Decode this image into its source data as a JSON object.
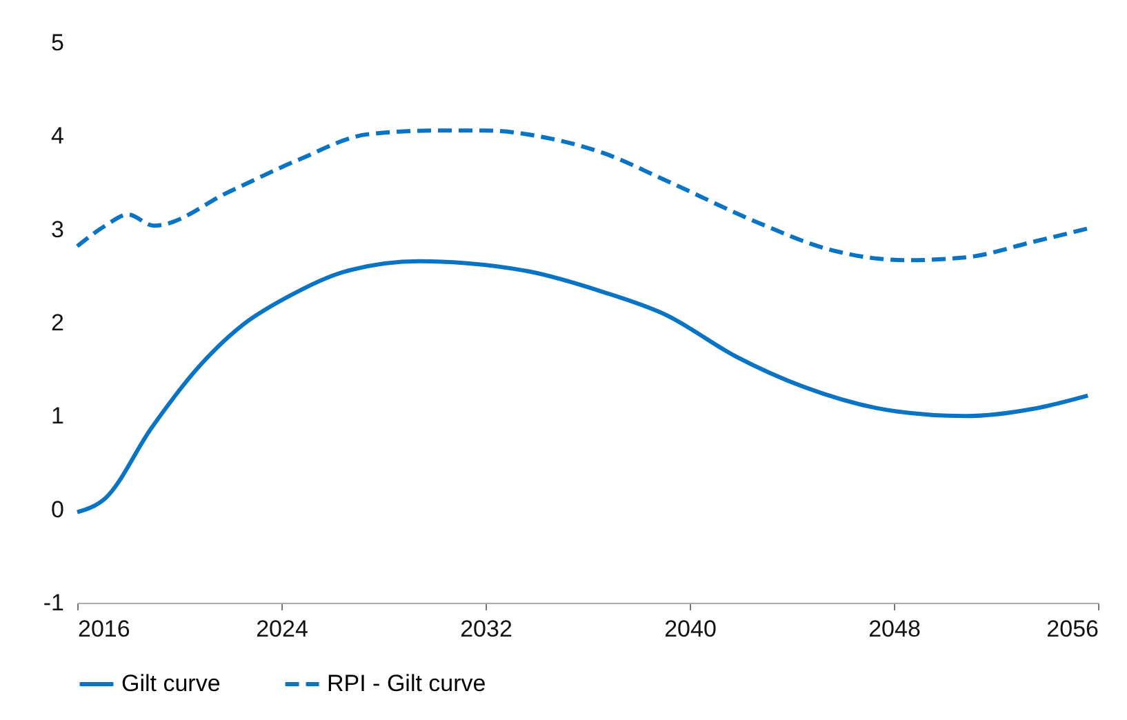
{
  "chart_data": {
    "type": "line",
    "xlim": [
      2016,
      2056
    ],
    "xticks": [
      2016,
      2024,
      2032,
      2040,
      2048,
      2056
    ],
    "ylim": [
      -1,
      5
    ],
    "yticks": [
      -1,
      0,
      1,
      2,
      3,
      4,
      5
    ],
    "grid": false,
    "legend": "bottom left",
    "series": [
      {
        "name": "Gilt curve",
        "color": "#0a74c4",
        "line_style": "solid",
        "x": [
          2016,
          2017.1,
          2018.9,
          2020.8,
          2022.5,
          2024.2,
          2026.5,
          2029.4,
          2031.2,
          2033.7,
          2036.6,
          2039.1,
          2041.8,
          2044.5,
          2048.1,
          2050.8,
          2053.5,
          2055.6
        ],
        "values": [
          -0.03,
          0.12,
          0.87,
          1.54,
          1.98,
          2.27,
          2.55,
          2.66,
          2.64,
          2.55,
          2.33,
          2.08,
          1.64,
          1.31,
          1.05,
          1.0,
          1.08,
          1.22
        ]
      },
      {
        "name": "RPI - Gilt curve",
        "color": "#0a74c4",
        "line_style": "dashed",
        "x": [
          2016,
          2017.1,
          2018.0,
          2019.0,
          2022,
          2024.7,
          2027.4,
          2030.1,
          2031.9,
          2034.6,
          2036.6,
          2039.1,
          2042.7,
          2045.4,
          2048.5,
          2050.8,
          2053.5,
          2055.6
        ],
        "values": [
          2.82,
          3.04,
          3.16,
          3.04,
          3.41,
          3.75,
          4.02,
          4.06,
          4.06,
          3.97,
          3.82,
          3.52,
          3.07,
          2.79,
          2.67,
          2.7,
          2.87,
          3.01
        ]
      }
    ]
  }
}
